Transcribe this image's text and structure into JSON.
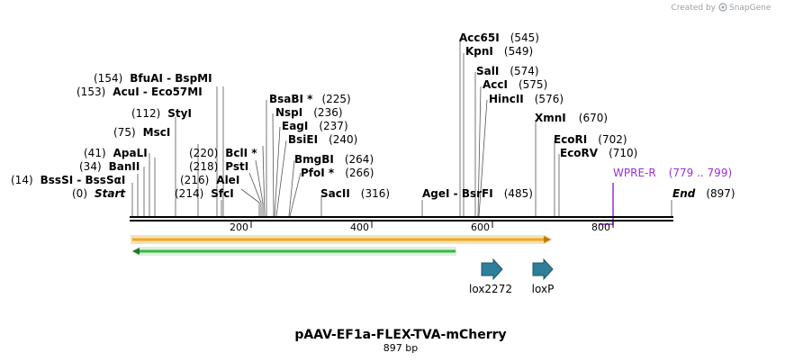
{
  "credit": {
    "prefix": "Created by",
    "brand": "SnapGene"
  },
  "plasmid": {
    "name": "pAAV-EF1a-FLEX-TVA-mCherry",
    "length_label": "897 bp"
  },
  "ruler": {
    "ticks": [
      "200",
      "400",
      "600",
      "800"
    ]
  },
  "sites": [
    {
      "enzyme": "BssSI - BssSαI",
      "pos": "(14)"
    },
    {
      "enzyme": "Start",
      "pos": "(0)"
    },
    {
      "enzyme": "BanII",
      "pos": "(34)"
    },
    {
      "enzyme": "ApaLI",
      "pos": "(41)"
    },
    {
      "enzyme": "MscI",
      "pos": "(75)"
    },
    {
      "enzyme": "StyI",
      "pos": "(112)"
    },
    {
      "enzyme": "AcuI - Eco57MI",
      "pos": "(153)"
    },
    {
      "enzyme": "BfuAI - BspMI",
      "pos": "(154)"
    },
    {
      "enzyme": "SfcI",
      "pos": "(214)"
    },
    {
      "enzyme": "AleI",
      "pos": "(216)"
    },
    {
      "enzyme": "PstI",
      "pos": "(218)"
    },
    {
      "enzyme": "BclI *",
      "pos": "(220)"
    },
    {
      "enzyme": "BsaBI *",
      "pos": "(225)"
    },
    {
      "enzyme": "NspI",
      "pos": "(236)"
    },
    {
      "enzyme": "EagI",
      "pos": "(237)"
    },
    {
      "enzyme": "BsiEI",
      "pos": "(240)"
    },
    {
      "enzyme": "BmgBI",
      "pos": "(264)"
    },
    {
      "enzyme": "PfoI *",
      "pos": "(266)"
    },
    {
      "enzyme": "SacII",
      "pos": "(316)"
    },
    {
      "enzyme": "AgeI - BsrFI",
      "pos": "(485)"
    },
    {
      "enzyme": "Acc65I",
      "pos": "(545)"
    },
    {
      "enzyme": "KpnI",
      "pos": "(549)"
    },
    {
      "enzyme": "SalI",
      "pos": "(574)"
    },
    {
      "enzyme": "AccI",
      "pos": "(575)"
    },
    {
      "enzyme": "HincII",
      "pos": "(576)"
    },
    {
      "enzyme": "XmnI",
      "pos": "(670)"
    },
    {
      "enzyme": "EcoRI",
      "pos": "(702)"
    },
    {
      "enzyme": "EcoRV",
      "pos": "(710)"
    },
    {
      "enzyme": "End",
      "pos": "(897)"
    }
  ],
  "primer": {
    "name": "WPRE-R",
    "range": "(779 .. 799)",
    "color": "#9b30d9"
  },
  "features": [
    {
      "name": "lox2272",
      "color": "#2e7f99"
    },
    {
      "name": "loxP",
      "color": "#2e7f99"
    }
  ],
  "arrows": [
    {
      "name": "forward-orf",
      "fill": "#f5a623",
      "outline": "#c4b98a"
    },
    {
      "name": "reverse-orf",
      "fill": "#3cb54a",
      "outline": "#b7dfb7"
    }
  ]
}
